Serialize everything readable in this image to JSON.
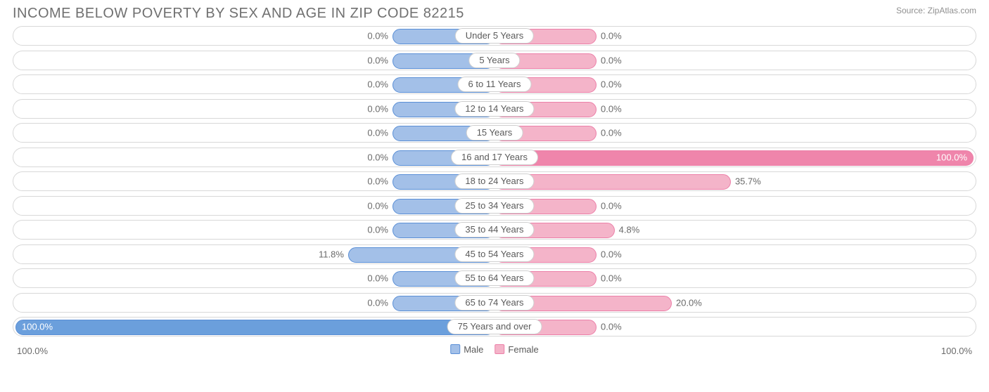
{
  "title": "INCOME BELOW POVERTY BY SEX AND AGE IN ZIP CODE 82215",
  "source": "Source: ZipAtlas.com",
  "chart": {
    "type": "diverging-bar",
    "track_border_color": "#d8d8d8",
    "track_bg": "#ffffff",
    "male_fill": "#a3c0e8",
    "male_edge": "#5a8fd6",
    "male_full_fill": "#6b9fdc",
    "female_fill": "#f4b4c9",
    "female_edge": "#ec7fa8",
    "female_full_fill": "#ef85ab",
    "text_color": "#6a6a6a",
    "min_bar_pct": 10.6,
    "half_width_pct": 50,
    "axis": {
      "left": "100.0%",
      "right": "100.0%"
    },
    "legend": [
      {
        "label": "Male",
        "color": "#a3c0e8",
        "border": "#5a8fd6"
      },
      {
        "label": "Female",
        "color": "#f4b4c9",
        "border": "#ec7fa8"
      }
    ],
    "rows": [
      {
        "label": "Under 5 Years",
        "male": 0.0,
        "female": 0.0
      },
      {
        "label": "5 Years",
        "male": 0.0,
        "female": 0.0
      },
      {
        "label": "6 to 11 Years",
        "male": 0.0,
        "female": 0.0
      },
      {
        "label": "12 to 14 Years",
        "male": 0.0,
        "female": 0.0
      },
      {
        "label": "15 Years",
        "male": 0.0,
        "female": 0.0
      },
      {
        "label": "16 and 17 Years",
        "male": 0.0,
        "female": 100.0
      },
      {
        "label": "18 to 24 Years",
        "male": 0.0,
        "female": 35.7
      },
      {
        "label": "25 to 34 Years",
        "male": 0.0,
        "female": 0.0
      },
      {
        "label": "35 to 44 Years",
        "male": 0.0,
        "female": 4.8
      },
      {
        "label": "45 to 54 Years",
        "male": 11.8,
        "female": 0.0
      },
      {
        "label": "55 to 64 Years",
        "male": 0.0,
        "female": 0.0
      },
      {
        "label": "65 to 74 Years",
        "male": 0.0,
        "female": 20.0
      },
      {
        "label": "75 Years and over",
        "male": 100.0,
        "female": 0.0
      }
    ]
  }
}
